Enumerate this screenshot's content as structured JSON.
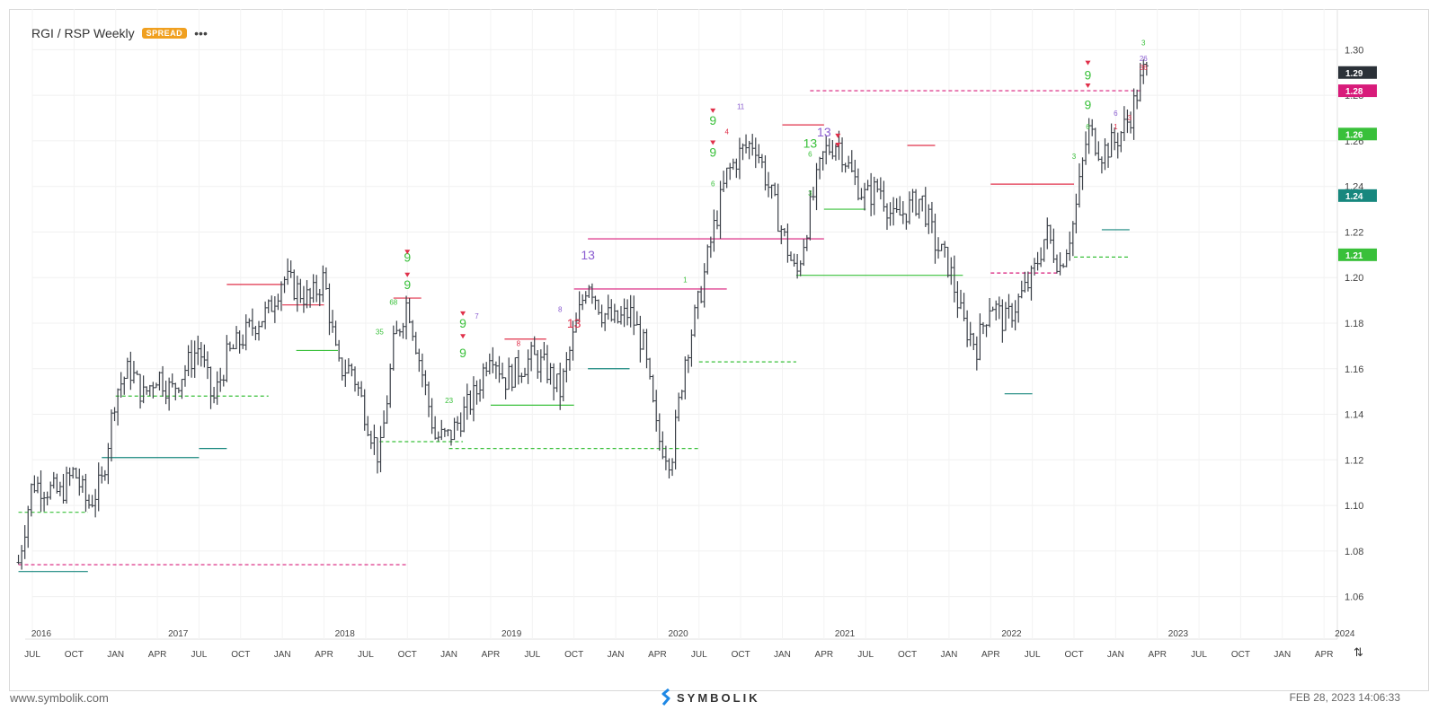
{
  "header": {
    "title": "RGI / RSP",
    "timeframe": "Weekly",
    "badge": "SPREAD",
    "more": "•••",
    "badge_color": "#f0a020"
  },
  "footer": {
    "site": "www.symbolik.com",
    "brand": "SYMBOLIK",
    "timestamp": "FEB 28, 2023 14:06:33"
  },
  "controls": {
    "swap_icon": "⇅"
  },
  "chart_data": {
    "type": "ohlc",
    "ylim": [
      1.05,
      1.31
    ],
    "y_ticks": [
      "1.30",
      "1.28",
      "1.26",
      "1.24",
      "1.22",
      "1.20",
      "1.18",
      "1.16",
      "1.14",
      "1.12",
      "1.10",
      "1.08",
      "1.06"
    ],
    "years": [
      "2016",
      "2017",
      "2018",
      "2019",
      "2020",
      "2021",
      "2022",
      "2023",
      "2024"
    ],
    "months": [
      "JUL",
      "OCT",
      "JAN",
      "APR",
      "JUL",
      "OCT",
      "JAN",
      "APR",
      "JUL",
      "OCT",
      "JAN",
      "APR",
      "JUL",
      "OCT",
      "JAN",
      "APR",
      "JUL",
      "OCT",
      "JAN",
      "APR",
      "JUL",
      "OCT",
      "JAN",
      "APR",
      "JUL",
      "OCT",
      "JAN",
      "APR",
      "JUL",
      "OCT",
      "JAN",
      "APR"
    ],
    "last_close": 1.29,
    "price_tags": [
      {
        "label": "1.29",
        "value": 1.29,
        "color": "#2b3138"
      },
      {
        "label": "1.28",
        "value": 1.282,
        "color": "#d81b7a"
      },
      {
        "label": "1.26",
        "value": 1.263,
        "color": "#39c03a"
      },
      {
        "label": "1.24",
        "value": 1.236,
        "color": "#17877e"
      },
      {
        "label": "1.21",
        "value": 1.21,
        "color": "#39c03a"
      }
    ],
    "price_path": [
      [
        "2016-06",
        1.075
      ],
      [
        "2016-07",
        1.11
      ],
      [
        "2016-09",
        1.105
      ],
      [
        "2016-10",
        1.115
      ],
      [
        "2016-11",
        1.1
      ],
      [
        "2016-12",
        1.11
      ],
      [
        "2017-01",
        1.15
      ],
      [
        "2017-02",
        1.16
      ],
      [
        "2017-03",
        1.148
      ],
      [
        "2017-04",
        1.158
      ],
      [
        "2017-05",
        1.15
      ],
      [
        "2017-06",
        1.16
      ],
      [
        "2017-07",
        1.17
      ],
      [
        "2017-08",
        1.145
      ],
      [
        "2017-09",
        1.165
      ],
      [
        "2017-11",
        1.18
      ],
      [
        "2017-12",
        1.185
      ],
      [
        "2018-01",
        1.2
      ],
      [
        "2018-02",
        1.195
      ],
      [
        "2018-03",
        1.19
      ],
      [
        "2018-04",
        1.2
      ],
      [
        "2018-05",
        1.16
      ],
      [
        "2018-06",
        1.16
      ],
      [
        "2018-07",
        1.14
      ],
      [
        "2018-08",
        1.12
      ],
      [
        "2018-09",
        1.17
      ],
      [
        "2018-10",
        1.19
      ],
      [
        "2018-11",
        1.16
      ],
      [
        "2018-12",
        1.13
      ],
      [
        "2019-01",
        1.13
      ],
      [
        "2019-02",
        1.14
      ],
      [
        "2019-03",
        1.15
      ],
      [
        "2019-04",
        1.17
      ],
      [
        "2019-05",
        1.155
      ],
      [
        "2019-06",
        1.16
      ],
      [
        "2019-07",
        1.165
      ],
      [
        "2019-08",
        1.16
      ],
      [
        "2019-09",
        1.15
      ],
      [
        "2019-10",
        1.175
      ],
      [
        "2019-11",
        1.2
      ],
      [
        "2019-12",
        1.185
      ],
      [
        "2020-01",
        1.18
      ],
      [
        "2020-02",
        1.185
      ],
      [
        "2020-03",
        1.17
      ],
      [
        "2020-04",
        1.13
      ],
      [
        "2020-05",
        1.12
      ],
      [
        "2020-06",
        1.165
      ],
      [
        "2020-07",
        1.19
      ],
      [
        "2020-08",
        1.22
      ],
      [
        "2020-09",
        1.245
      ],
      [
        "2020-10",
        1.255
      ],
      [
        "2020-11",
        1.26
      ],
      [
        "2020-12",
        1.24
      ],
      [
        "2021-01",
        1.22
      ],
      [
        "2021-02",
        1.2
      ],
      [
        "2021-03",
        1.23
      ],
      [
        "2021-04",
        1.255
      ],
      [
        "2021-05",
        1.26
      ],
      [
        "2021-06",
        1.245
      ],
      [
        "2021-07",
        1.235
      ],
      [
        "2021-08",
        1.24
      ],
      [
        "2021-09",
        1.225
      ],
      [
        "2021-10",
        1.23
      ],
      [
        "2021-11",
        1.235
      ],
      [
        "2021-12",
        1.215
      ],
      [
        "2022-01",
        1.205
      ],
      [
        "2022-02",
        1.18
      ],
      [
        "2022-03",
        1.17
      ],
      [
        "2022-04",
        1.19
      ],
      [
        "2022-05",
        1.18
      ],
      [
        "2022-06",
        1.19
      ],
      [
        "2022-07",
        1.2
      ],
      [
        "2022-08",
        1.22
      ],
      [
        "2022-09",
        1.205
      ],
      [
        "2022-10",
        1.225
      ],
      [
        "2022-11",
        1.265
      ],
      [
        "2022-12",
        1.255
      ],
      [
        "2023-01",
        1.26
      ],
      [
        "2023-02",
        1.27
      ],
      [
        "2023-03",
        1.29
      ]
    ],
    "levels": [
      {
        "from": "2016-06",
        "to": "2018-10",
        "y": 1.074,
        "color": "#d81b7a",
        "dash": true
      },
      {
        "from": "2016-06",
        "to": "2016-11",
        "y": 1.071,
        "color": "#17877e",
        "dash": false
      },
      {
        "from": "2016-06",
        "to": "2016-11",
        "y": 1.097,
        "color": "#39c03a",
        "dash": true
      },
      {
        "from": "2016-12",
        "to": "2017-07",
        "y": 1.121,
        "color": "#17877e",
        "dash": false
      },
      {
        "from": "2017-01",
        "to": "2017-12",
        "y": 1.148,
        "color": "#39c03a",
        "dash": true
      },
      {
        "from": "2017-07",
        "to": "2017-09",
        "y": 1.125,
        "color": "#17877e",
        "dash": false
      },
      {
        "from": "2017-09",
        "to": "2018-01",
        "y": 1.197,
        "color": "#e0304a",
        "dash": false
      },
      {
        "from": "2018-01",
        "to": "2018-04",
        "y": 1.188,
        "color": "#e0304a",
        "dash": false
      },
      {
        "from": "2018-02",
        "to": "2018-05",
        "y": 1.168,
        "color": "#39c03a",
        "dash": false
      },
      {
        "from": "2018-08",
        "to": "2019-02",
        "y": 1.128,
        "color": "#39c03a",
        "dash": true
      },
      {
        "from": "2018-09",
        "to": "2018-11",
        "y": 1.191,
        "color": "#e0304a",
        "dash": false
      },
      {
        "from": "2019-01",
        "to": "2020-07",
        "y": 1.125,
        "color": "#39c03a",
        "dash": true
      },
      {
        "from": "2019-04",
        "to": "2019-10",
        "y": 1.144,
        "color": "#39c03a",
        "dash": false
      },
      {
        "from": "2019-05",
        "to": "2019-08",
        "y": 1.173,
        "color": "#e0304a",
        "dash": false
      },
      {
        "from": "2019-10",
        "to": "2020-09",
        "y": 1.195,
        "color": "#d81b7a",
        "dash": false
      },
      {
        "from": "2019-11",
        "to": "2021-04",
        "y": 1.217,
        "color": "#d81b7a",
        "dash": false
      },
      {
        "from": "2019-11",
        "to": "2020-02",
        "y": 1.16,
        "color": "#17877e",
        "dash": false
      },
      {
        "from": "2020-07",
        "to": "2021-02",
        "y": 1.163,
        "color": "#39c03a",
        "dash": true
      },
      {
        "from": "2021-01",
        "to": "2021-04",
        "y": 1.267,
        "color": "#e0304a",
        "dash": false
      },
      {
        "from": "2021-02",
        "to": "2022-02",
        "y": 1.201,
        "color": "#39c03a",
        "dash": false
      },
      {
        "from": "2021-03",
        "to": "2023-03",
        "y": 1.282,
        "color": "#d81b7a",
        "dash": true
      },
      {
        "from": "2021-04",
        "to": "2021-07",
        "y": 1.23,
        "color": "#39c03a",
        "dash": false
      },
      {
        "from": "2021-10",
        "to": "2021-12",
        "y": 1.258,
        "color": "#e0304a",
        "dash": false
      },
      {
        "from": "2022-04",
        "to": "2022-10",
        "y": 1.241,
        "color": "#e0304a",
        "dash": false
      },
      {
        "from": "2022-04",
        "to": "2022-09",
        "y": 1.202,
        "color": "#d81b7a",
        "dash": true
      },
      {
        "from": "2022-05",
        "to": "2022-07",
        "y": 1.149,
        "color": "#17877e",
        "dash": false
      },
      {
        "from": "2022-10",
        "to": "2023-02",
        "y": 1.209,
        "color": "#39c03a",
        "dash": true
      },
      {
        "from": "2022-12",
        "to": "2023-02",
        "y": 1.221,
        "color": "#17877e",
        "dash": false
      }
    ],
    "annotations": [
      {
        "t": "2018-10",
        "y": 1.207,
        "text": "9",
        "color": "#39c03a",
        "big": true
      },
      {
        "t": "2018-10",
        "y": 1.195,
        "text": "9",
        "color": "#39c03a",
        "big": true
      },
      {
        "t": "2019-02",
        "y": 1.178,
        "text": "9",
        "color": "#39c03a",
        "big": true
      },
      {
        "t": "2019-02",
        "y": 1.165,
        "text": "9",
        "color": "#39c03a",
        "big": true
      },
      {
        "t": "2019-11",
        "y": 1.208,
        "text": "13",
        "color": "#8a5cd0",
        "big": true
      },
      {
        "t": "2019-10",
        "y": 1.178,
        "text": "13",
        "color": "#e0304a",
        "big": true
      },
      {
        "t": "2020-08",
        "y": 1.267,
        "text": "9",
        "color": "#39c03a",
        "big": true
      },
      {
        "t": "2020-08",
        "y": 1.253,
        "text": "9",
        "color": "#39c03a",
        "big": true
      },
      {
        "t": "2021-04",
        "y": 1.262,
        "text": "13",
        "color": "#8a5cd0",
        "big": true
      },
      {
        "t": "2021-03",
        "y": 1.257,
        "text": "13",
        "color": "#39c03a",
        "big": true
      },
      {
        "t": "2022-11",
        "y": 1.287,
        "text": "9",
        "color": "#39c03a",
        "big": true
      },
      {
        "t": "2022-11",
        "y": 1.274,
        "text": "9",
        "color": "#39c03a",
        "big": true
      },
      {
        "t": "2018-09",
        "y": 1.188,
        "text": "68",
        "color": "#39c03a",
        "big": false
      },
      {
        "t": "2018-08",
        "y": 1.175,
        "text": "35",
        "color": "#39c03a",
        "big": false
      },
      {
        "t": "2019-01",
        "y": 1.145,
        "text": "23",
        "color": "#39c03a",
        "big": false
      },
      {
        "t": "2019-03",
        "y": 1.182,
        "text": "7",
        "color": "#8a5cd0",
        "big": false
      },
      {
        "t": "2019-06",
        "y": 1.17,
        "text": "8",
        "color": "#e0304a",
        "big": false
      },
      {
        "t": "2019-09",
        "y": 1.185,
        "text": "8",
        "color": "#8a5cd0",
        "big": false
      },
      {
        "t": "2020-06",
        "y": 1.198,
        "text": "1",
        "color": "#39c03a",
        "big": false
      },
      {
        "t": "2020-08",
        "y": 1.24,
        "text": "6",
        "color": "#39c03a",
        "big": false
      },
      {
        "t": "2020-10",
        "y": 1.274,
        "text": "11",
        "color": "#8a5cd0",
        "big": false
      },
      {
        "t": "2020-09",
        "y": 1.263,
        "text": "4",
        "color": "#e0304a",
        "big": false
      },
      {
        "t": "2021-03",
        "y": 1.236,
        "text": "3",
        "color": "#39c03a",
        "big": false
      },
      {
        "t": "2021-03",
        "y": 1.253,
        "text": "6",
        "color": "#39c03a",
        "big": false
      },
      {
        "t": "2022-10",
        "y": 1.252,
        "text": "3",
        "color": "#39c03a",
        "big": false
      },
      {
        "t": "2022-11",
        "y": 1.265,
        "text": "6",
        "color": "#39c03a",
        "big": false
      },
      {
        "t": "2023-01",
        "y": 1.271,
        "text": "6",
        "color": "#8a5cd0",
        "big": false
      },
      {
        "t": "2023-01",
        "y": 1.265,
        "text": "1",
        "color": "#e0304a",
        "big": false
      },
      {
        "t": "2023-02",
        "y": 1.269,
        "text": "3",
        "color": "#e0304a",
        "big": false
      },
      {
        "t": "2023-03",
        "y": 1.302,
        "text": "3",
        "color": "#39c03a",
        "big": false
      },
      {
        "t": "2023-03",
        "y": 1.295,
        "text": "26",
        "color": "#8a5cd0",
        "big": false
      },
      {
        "t": "2023-03",
        "y": 1.291,
        "text": "36",
        "color": "#e0304a",
        "big": false
      }
    ],
    "markers": [
      {
        "t": "2018-10",
        "y": 1.211
      },
      {
        "t": "2018-10",
        "y": 1.201
      },
      {
        "t": "2019-02",
        "y": 1.184
      },
      {
        "t": "2019-02",
        "y": 1.174
      },
      {
        "t": "2020-08",
        "y": 1.273
      },
      {
        "t": "2020-08",
        "y": 1.259
      },
      {
        "t": "2021-05",
        "y": 1.262
      },
      {
        "t": "2021-05",
        "y": 1.258
      },
      {
        "t": "2022-11",
        "y": 1.294
      },
      {
        "t": "2022-11",
        "y": 1.284
      }
    ],
    "grid": true
  }
}
